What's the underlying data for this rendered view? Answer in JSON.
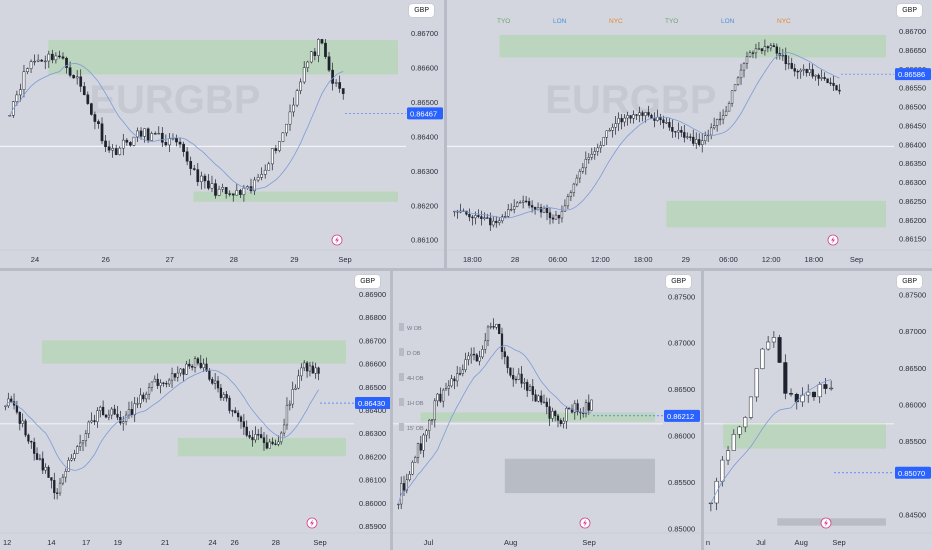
{
  "currency": "GBP",
  "colors": {
    "bull": "#ffffff",
    "bear": "#1e222d",
    "zone_green": "#a9d6a3",
    "zone_grey": "#a7abb4",
    "ma": "#7e9ad6",
    "current": "#2962ff"
  },
  "chart_data": [
    {
      "type": "candlestick",
      "panel": "top-left",
      "y_ticks": [
        "0.86700",
        "0.86600",
        "0.86500",
        "0.86400",
        "0.86300",
        "0.86200",
        "0.86100"
      ],
      "ylim": [
        0.8607,
        0.8675
      ],
      "x_ticks": [
        "24",
        "26",
        "27",
        "28",
        "29",
        "Sep"
      ],
      "current_price": "0.86467",
      "zones": [
        [
          0.8658,
          0.8668
        ],
        [
          0.8621,
          0.8624
        ]
      ],
      "watermark": "EURGBP"
    },
    {
      "type": "candlestick",
      "panel": "top-right",
      "y_ticks": [
        "0.86700",
        "0.86650",
        "0.86600",
        "0.86550",
        "0.86500",
        "0.86450",
        "0.86400",
        "0.86350",
        "0.86300",
        "0.86250",
        "0.86200",
        "0.86150"
      ],
      "ylim": [
        0.8612,
        0.8674
      ],
      "x_ticks": [
        "18:00",
        "28",
        "06:00",
        "12:00",
        "18:00",
        "29",
        "06:00",
        "12:00",
        "18:00",
        "Sep"
      ],
      "current_price": "0.86586",
      "sessions": [
        "TYO",
        "LON",
        "NYC",
        "TYO",
        "LON",
        "NYC"
      ],
      "zones": [
        [
          0.8663,
          0.8669
        ],
        [
          0.8618,
          0.8625
        ]
      ],
      "watermark": "EURGBP"
    },
    {
      "type": "candlestick",
      "panel": "bottom-left",
      "y_ticks": [
        "0.86900",
        "0.86800",
        "0.86700",
        "0.86600",
        "0.86500",
        "0.86400",
        "0.86300",
        "0.86200",
        "0.86100",
        "0.86000",
        "0.85900"
      ],
      "ylim": [
        0.8587,
        0.8693
      ],
      "x_ticks": [
        "12",
        "14",
        "17",
        "19",
        "21",
        "24",
        "26",
        "28",
        "Sep"
      ],
      "current_price": "0.86430",
      "zones": [
        [
          0.866,
          0.867
        ],
        [
          0.862,
          0.8628
        ]
      ]
    },
    {
      "type": "candlestick",
      "panel": "bottom-middle",
      "y_ticks": [
        "0.87500",
        "0.87000",
        "0.86500",
        "0.86000",
        "0.85500",
        "0.85000"
      ],
      "ylim": [
        0.8495,
        0.876
      ],
      "x_ticks": [
        "Jul",
        "Aug",
        "Sep"
      ],
      "current_price": "0.86212",
      "ob_labels": [
        "W OB",
        "D OB",
        "4H OB",
        "1H OB",
        "15' OB"
      ],
      "zones": [
        [
          0.8615,
          0.8625
        ],
        [
          0.8538,
          0.8575
        ]
      ]
    },
    {
      "type": "candlestick",
      "panel": "bottom-right",
      "y_ticks": [
        "0.87500",
        "0.87000",
        "0.86500",
        "0.86000",
        "0.85500",
        "0.85070",
        "0.84500"
      ],
      "ylim": [
        0.8425,
        0.876
      ],
      "x_ticks": [
        "n",
        "Jul",
        "Aug",
        "Sep"
      ],
      "current_price": "0.85070",
      "zones": [
        [
          0.854,
          0.8575
        ],
        [
          0.8435,
          0.8445
        ]
      ]
    }
  ]
}
